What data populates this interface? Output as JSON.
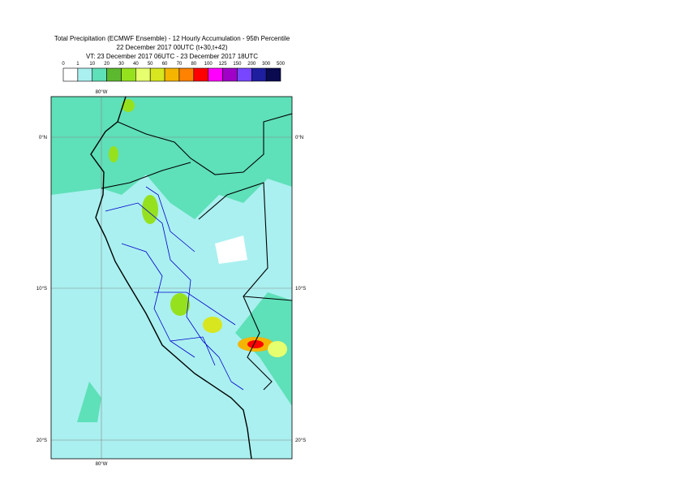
{
  "title": [
    "Total Precipitation (ECMWF Ensemble) - 12 Hourly Accumulation - 95th Percentile",
    "22 December 2017 00UTC (t+30,t+42)",
    "VT: 23 December 2017 06UTC - 23 December 2017 18UTC"
  ],
  "legend": {
    "levels": [
      0,
      1,
      10,
      20,
      30,
      40,
      50,
      60,
      70,
      80,
      100,
      125,
      150,
      200,
      300,
      500
    ],
    "colors": [
      "#ffffff",
      "#aaf0f0",
      "#5ee0b8",
      "#5cb82e",
      "#96e11e",
      "#e6ff6e",
      "#d7e61e",
      "#f5b400",
      "#ff8200",
      "#ff0000",
      "#ff00ff",
      "#a000c8",
      "#7846ff",
      "#1e1ea0",
      "#0a0a50"
    ]
  },
  "map": {
    "lon_labels": [
      "80°W"
    ],
    "lat_labels": [
      "0°N",
      "10°S",
      "20°S"
    ]
  }
}
